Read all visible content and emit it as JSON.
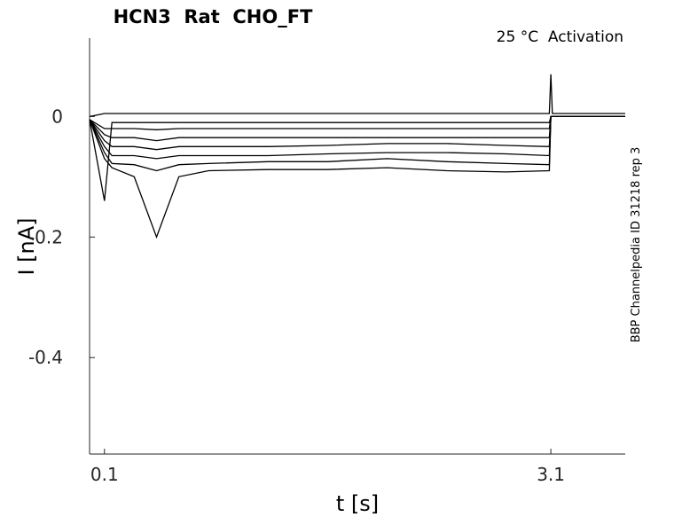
{
  "chart_data": {
    "type": "line",
    "title": "HCN3  Rat  CHO_FT",
    "annotation": "25 °C  Activation",
    "side_note": "BBP Channelpedia ID 31218 rep 3",
    "x_label": "t [s]",
    "y_label": "I [nA]",
    "color": "#000000",
    "xlim": [
      0,
      3.6
    ],
    "ylim": [
      -0.56,
      0.13
    ],
    "xticks": [
      0.1,
      3.1
    ],
    "yticks": [
      0,
      -0.2,
      -0.4
    ],
    "x": [
      0,
      0.1,
      0.15,
      0.3,
      0.45,
      0.6,
      0.8,
      1.2,
      1.6,
      2.0,
      2.4,
      2.8,
      3.09,
      3.1,
      3.11,
      3.6
    ],
    "series": [
      {
        "values": [
          0,
          0.005,
          0.005,
          0.005,
          0.005,
          0.005,
          0.005,
          0.005,
          0.005,
          0.005,
          0.005,
          0.005,
          0.005,
          0.07,
          0.005,
          0.005
        ]
      },
      {
        "values": [
          -0.005,
          -0.14,
          -0.01,
          -0.01,
          -0.01,
          -0.01,
          -0.01,
          -0.01,
          -0.01,
          -0.01,
          -0.01,
          -0.01,
          -0.01,
          0,
          0,
          0
        ]
      },
      {
        "values": [
          -0.005,
          -0.02,
          -0.02,
          -0.02,
          -0.022,
          -0.02,
          -0.02,
          -0.02,
          -0.02,
          -0.02,
          -0.02,
          -0.02,
          -0.02,
          0,
          0,
          0
        ]
      },
      {
        "values": [
          -0.005,
          -0.03,
          -0.035,
          -0.035,
          -0.04,
          -0.035,
          -0.035,
          -0.035,
          -0.035,
          -0.035,
          -0.035,
          -0.035,
          -0.035,
          0,
          0,
          0
        ]
      },
      {
        "values": [
          -0.005,
          -0.04,
          -0.05,
          -0.05,
          -0.055,
          -0.05,
          -0.05,
          -0.05,
          -0.048,
          -0.045,
          -0.045,
          -0.048,
          -0.05,
          0,
          0,
          0
        ]
      },
      {
        "values": [
          -0.005,
          -0.05,
          -0.065,
          -0.065,
          -0.07,
          -0.065,
          -0.065,
          -0.065,
          -0.062,
          -0.06,
          -0.06,
          -0.062,
          -0.065,
          0,
          0,
          0
        ]
      },
      {
        "values": [
          -0.005,
          -0.06,
          -0.078,
          -0.08,
          -0.09,
          -0.08,
          -0.078,
          -0.075,
          -0.075,
          -0.07,
          -0.075,
          -0.078,
          -0.08,
          0,
          0,
          0
        ]
      },
      {
        "values": [
          -0.005,
          -0.07,
          -0.085,
          -0.1,
          -0.2,
          -0.1,
          -0.09,
          -0.088,
          -0.088,
          -0.085,
          -0.09,
          -0.092,
          -0.09,
          0,
          0,
          0
        ]
      }
    ]
  }
}
